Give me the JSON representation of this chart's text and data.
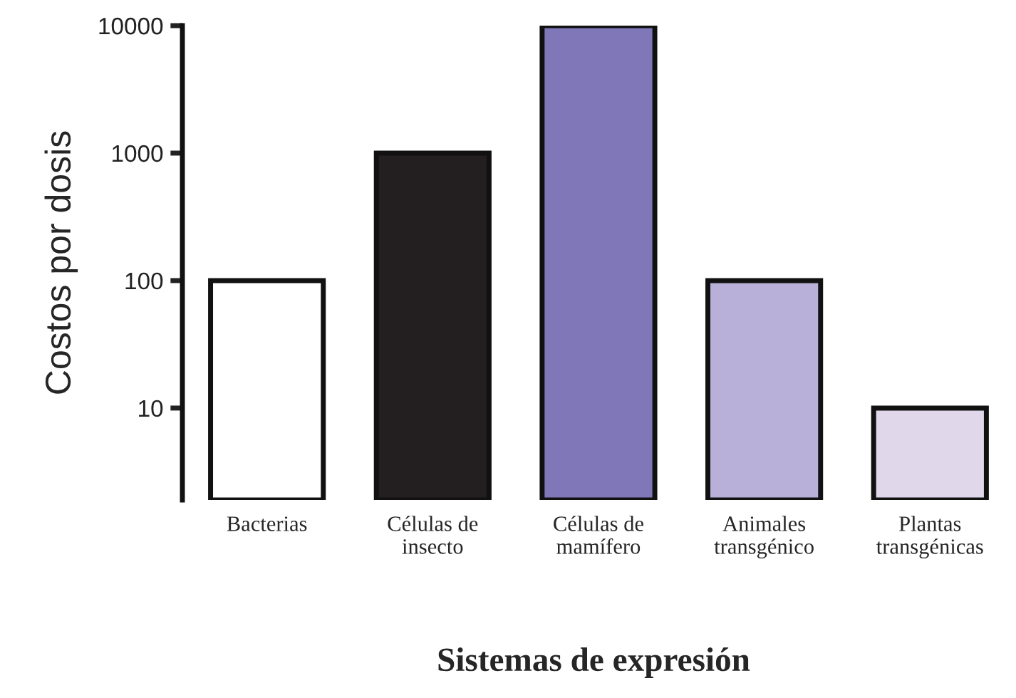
{
  "chart_data": {
    "type": "bar",
    "xlabel": "Sistemas de expresión",
    "ylabel": "Costos por dosis",
    "categories": [
      "Bacterias",
      "Células de\ninsecto",
      "Células de\nmamífero",
      "Animales\ntransgénico",
      "Plantas\ntransgénicas"
    ],
    "values": [
      100,
      1000,
      10000,
      100,
      10
    ],
    "colors": [
      "#ffffff",
      "#231f20",
      "#7f77b7",
      "#b8b0d8",
      "#e0d8ea"
    ],
    "log": "y",
    "ylim": [
      1.9,
      10000
    ],
    "yticks": [
      10,
      100,
      1000,
      10000
    ],
    "grid": false
  }
}
